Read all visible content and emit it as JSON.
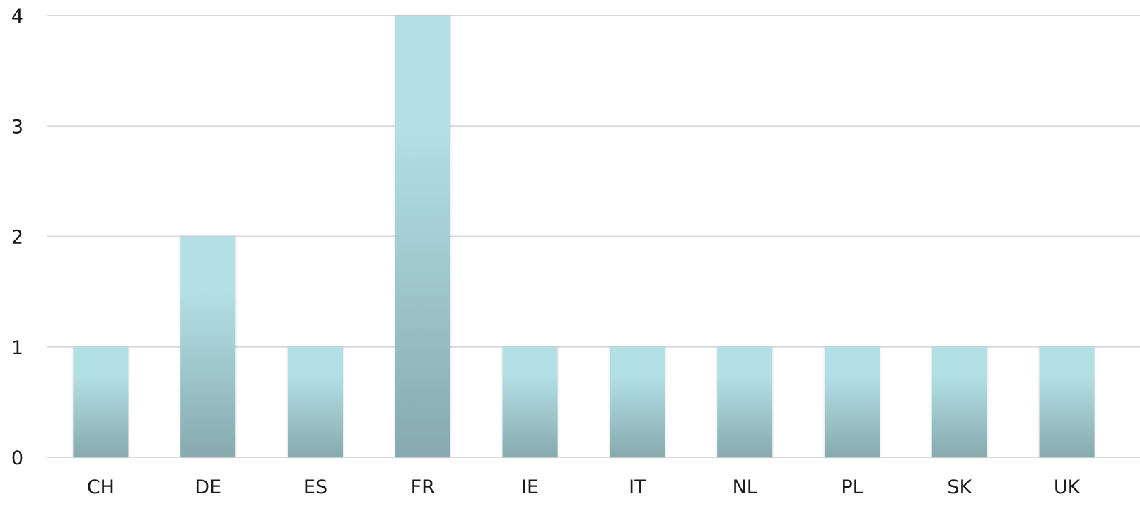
{
  "chart_data": {
    "type": "bar",
    "title": "",
    "xlabel": "",
    "ylabel": "",
    "categories": [
      "CH",
      "DE",
      "ES",
      "FR",
      "IE",
      "IT",
      "NL",
      "PL",
      "SK",
      "UK"
    ],
    "values": [
      1,
      2,
      1,
      4,
      1,
      1,
      1,
      1,
      1,
      1
    ],
    "ylim": [
      0,
      4
    ],
    "yticks": [
      0,
      1,
      2,
      3,
      4
    ],
    "grid": true,
    "legend": "none",
    "colors": {
      "bar_top": "#b3e0e5",
      "bar_bottom": "#86aaae",
      "grid": "#d9d9d9",
      "text": "#1a1a1a"
    }
  }
}
